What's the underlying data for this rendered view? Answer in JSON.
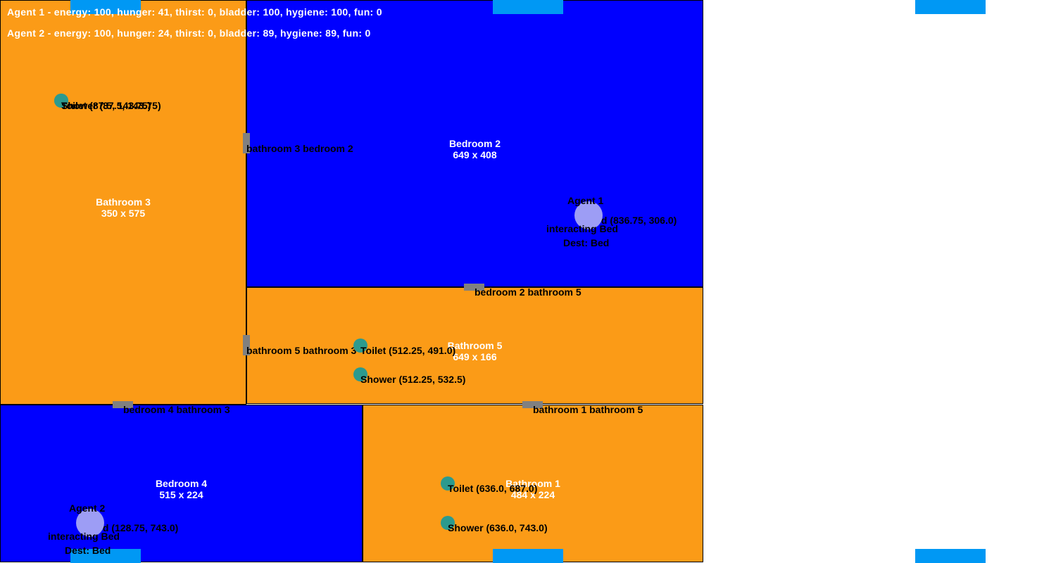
{
  "stats": {
    "agent1": "Agent 1 - energy: 100, hunger: 41, thirst: 0, bladder: 100, hygiene: 100, fun: 0",
    "agent2": "Agent 2 - energy: 100, hunger: 24, thirst: 0, bladder: 89, hygiene: 89, fun: 0"
  },
  "colors": {
    "bedroom": "#0000ff",
    "bathroom": "#fb9b17",
    "door": "#808080",
    "object": "#2c9a8e",
    "agent": "#9d9df5",
    "tab": "#0098f4"
  },
  "rooms": {
    "bathroom3": {
      "name": "Bathroom 3",
      "size": "350 x 575"
    },
    "bedroom2": {
      "name": "Bedroom 2",
      "size": "649 x 408"
    },
    "bathroom5": {
      "name": "Bathroom 5",
      "size": "649 x 166"
    },
    "bedroom4": {
      "name": "Bedroom 4",
      "size": "515 x 224"
    },
    "bathroom1": {
      "name": "Bathroom 1",
      "size": "484 x 224"
    }
  },
  "doors": {
    "bath3_bed2": "bathroom 3 bedroom 2",
    "bed2_bath5": "bedroom 2 bathroom 5",
    "bath5_bath3": "bathroom 5 bathroom 3",
    "bed4_bath3": "bedroom 4 bathroom 3",
    "bath1_bath5": "bathroom 1 bathroom 5"
  },
  "objects": {
    "bath3_toilet": "Toilet (87.5, 143.75)",
    "bath3_shower": "Shower (87.5, 143.75)",
    "bath5_toilet": "Toilet (512.25, 491.0)",
    "bath5_shower": "Shower (512.25, 532.5)",
    "bath1_toilet": "Toilet (636.0, 687.0)",
    "bath1_shower": "Shower (636.0, 743.0)",
    "bed2_bed": "Bed (836.75, 306.0)",
    "bed4_bed": "Bed (128.75, 743.0)"
  },
  "agents": {
    "agent1": {
      "name": "Agent 1",
      "action": "interacting Bed",
      "dest": "Dest: Bed"
    },
    "agent2": {
      "name": "Agent 2",
      "action": "interacting Bed",
      "dest": "Dest: Bed"
    }
  }
}
